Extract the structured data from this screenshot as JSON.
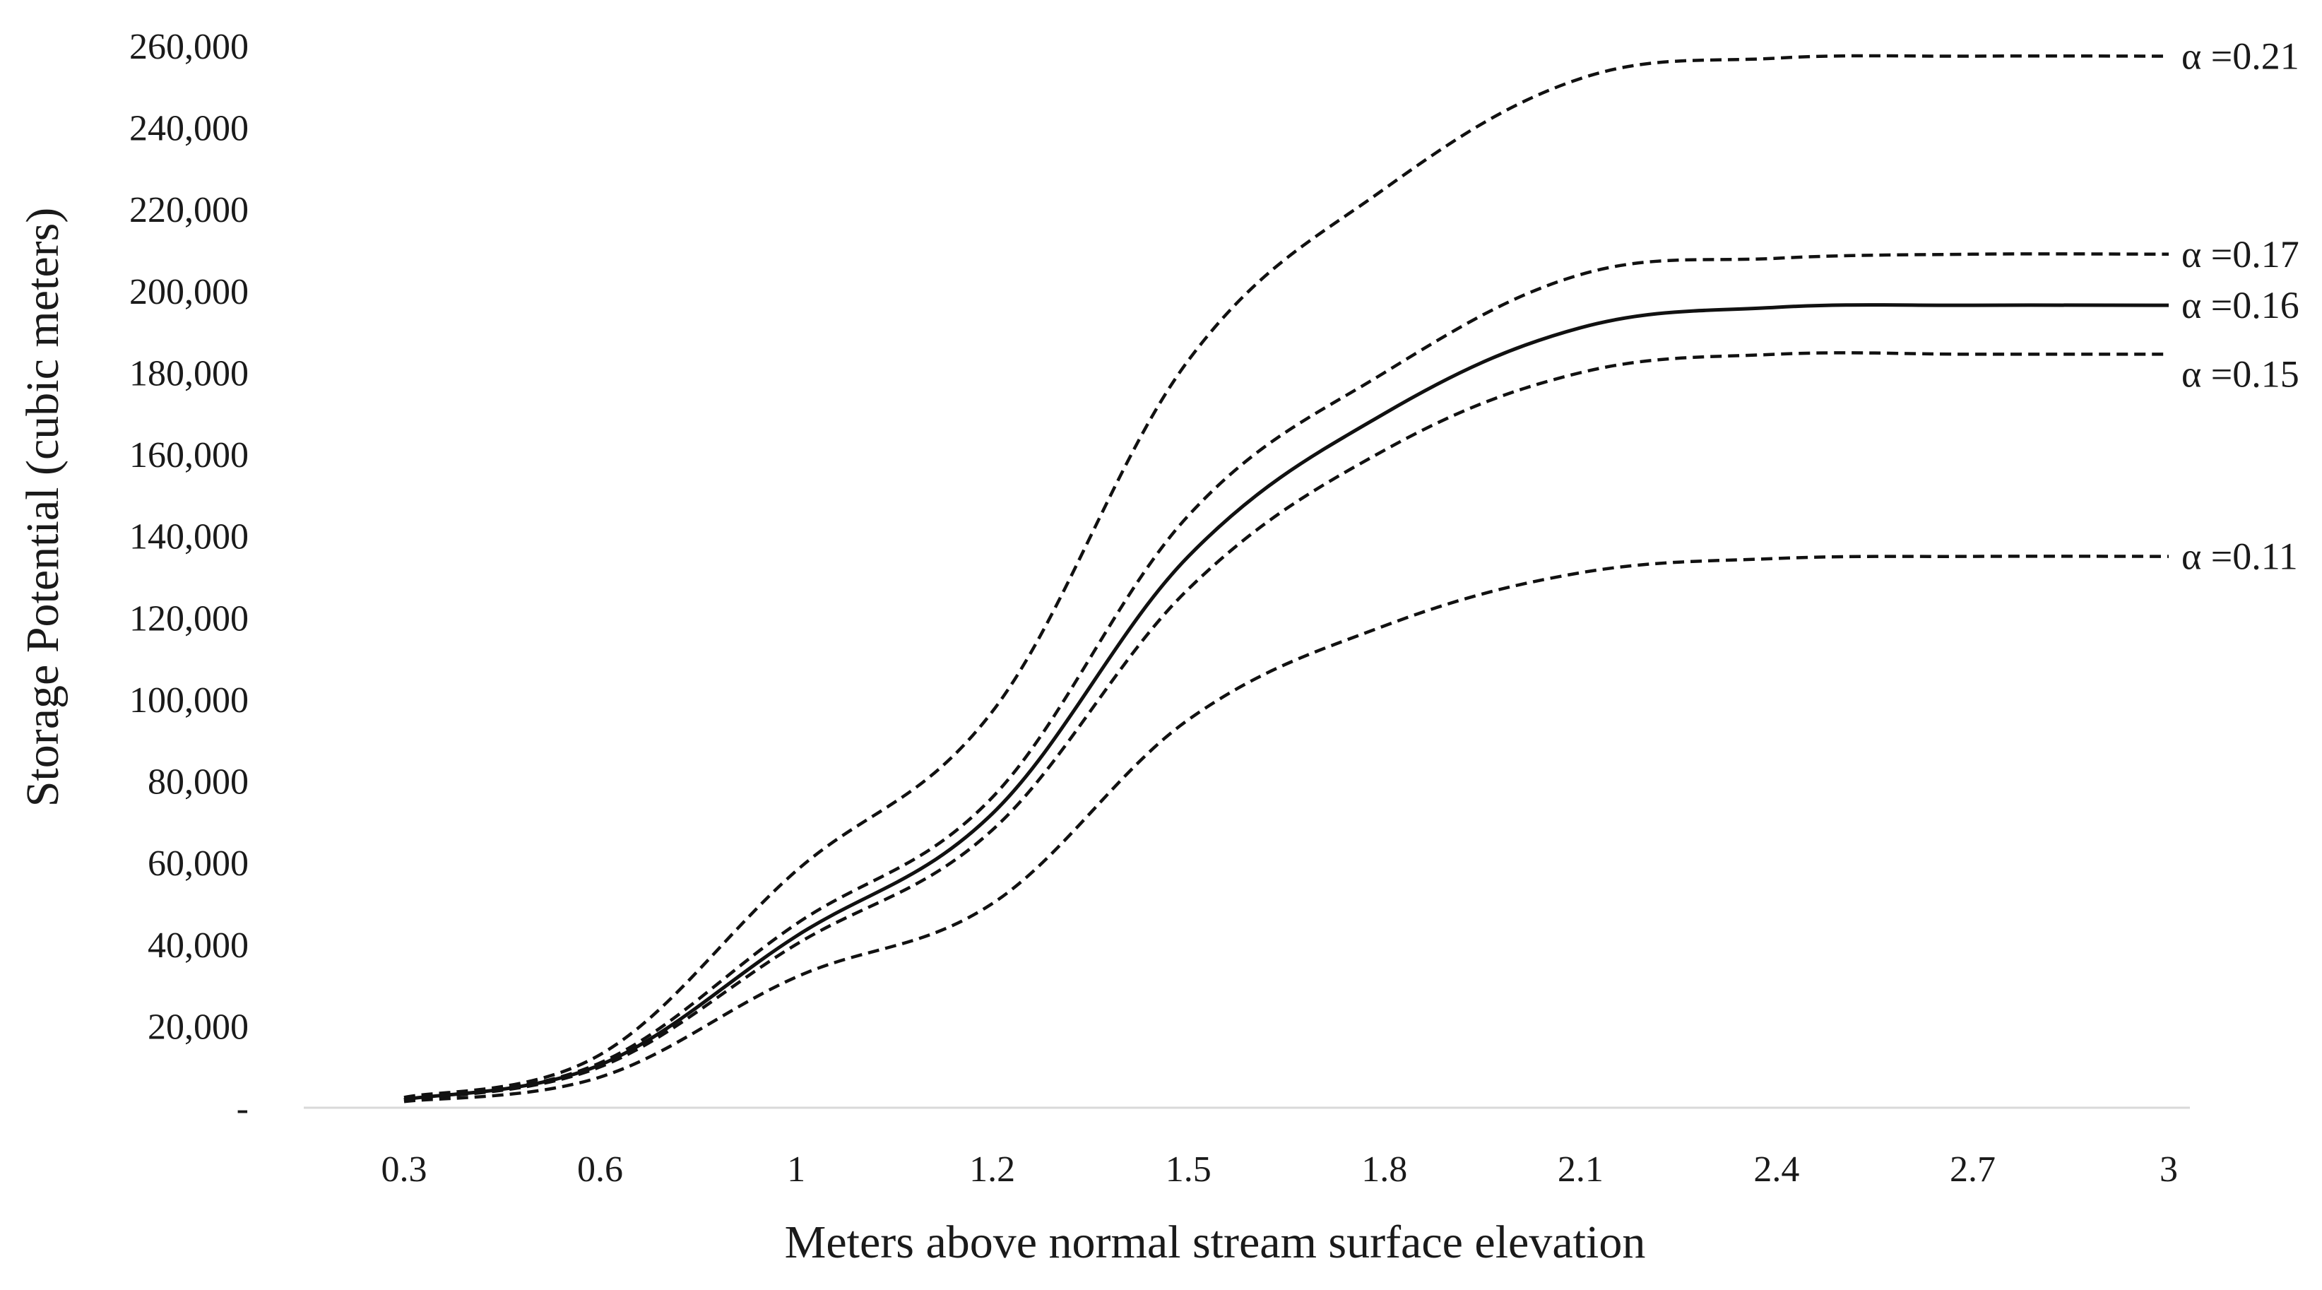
{
  "chart_data": {
    "type": "line",
    "title": "",
    "xlabel": "Meters above normal stream surface elevation",
    "ylabel": "Storage Potential (cubic meters)",
    "categories": [
      "0.3",
      "0.6",
      "1",
      "1.2",
      "1.5",
      "1.8",
      "2.1",
      "2.4",
      "2.7",
      "3"
    ],
    "yticks": [
      "-",
      "20,000",
      "40,000",
      "60,000",
      "80,000",
      "100,000",
      "120,000",
      "140,000",
      "160,000",
      "180,000",
      "200,000",
      "220,000",
      "240,000",
      "260,000"
    ],
    "ylim": [
      0,
      260000
    ],
    "grid": false,
    "legend": "labels at right end of each line",
    "series": [
      {
        "name": "α =0.21",
        "style": "dashed",
        "values": [
          2500,
          13000,
          58000,
          97000,
          183000,
          225000,
          252000,
          257000,
          257500,
          257500
        ]
      },
      {
        "name": "α =0.17",
        "style": "dashed",
        "values": [
          2000,
          11000,
          45000,
          76000,
          145000,
          180000,
          204000,
          208000,
          209000,
          209000
        ]
      },
      {
        "name": "α =0.16",
        "style": "solid",
        "values": [
          2000,
          10500,
          42000,
          72000,
          135000,
          170000,
          191000,
          196000,
          196500,
          196500
        ]
      },
      {
        "name": "α =0.15",
        "style": "dashed",
        "values": [
          1800,
          10000,
          40000,
          68000,
          127000,
          161000,
          180000,
          184500,
          184500,
          184500
        ]
      },
      {
        "name": "α =0.11",
        "style": "dashed",
        "values": [
          1500,
          7500,
          32000,
          50000,
          95000,
          118000,
          131000,
          134500,
          135000,
          135000
        ]
      }
    ]
  }
}
